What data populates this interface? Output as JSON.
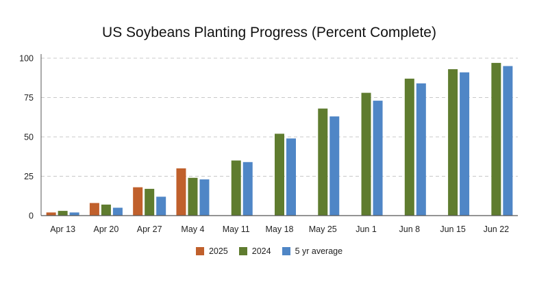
{
  "chart_data": {
    "type": "bar",
    "title": "US Soybeans Planting Progress (Percent Complete)",
    "xlabel": "",
    "ylabel": "",
    "categories": [
      "Apr 13",
      "Apr 20",
      "Apr 27",
      "May 4",
      "May 11",
      "May 18",
      "May 25",
      "Jun 1",
      "Jun 8",
      "Jun 15",
      "Jun 22"
    ],
    "ylim": [
      0,
      100
    ],
    "yticks": [
      0,
      25,
      50,
      75,
      100
    ],
    "grid": true,
    "legend_position": "bottom",
    "series": [
      {
        "name": "2025",
        "color": "#c0602c",
        "values": [
          2,
          8,
          18,
          30,
          null,
          null,
          null,
          null,
          null,
          null,
          null
        ]
      },
      {
        "name": "2024",
        "color": "#5f7c2f",
        "values": [
          3,
          7,
          17,
          24,
          35,
          52,
          68,
          78,
          87,
          93,
          97
        ]
      },
      {
        "name": "5 yr average",
        "color": "#4f86c6",
        "values": [
          2,
          5,
          12,
          23,
          34,
          49,
          63,
          73,
          84,
          91,
          95
        ]
      }
    ]
  }
}
